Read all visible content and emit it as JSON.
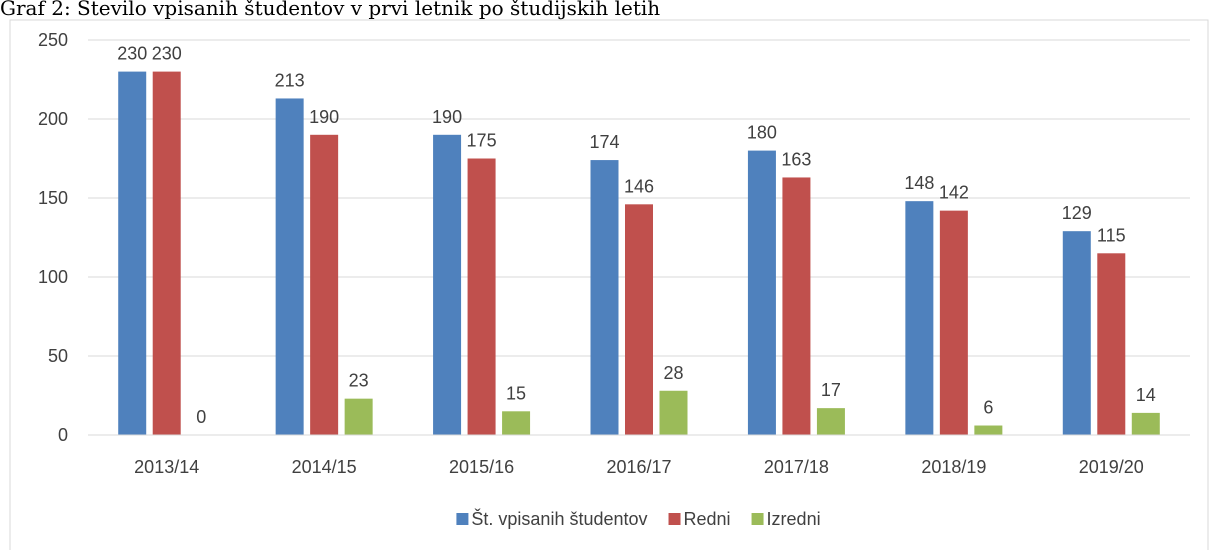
{
  "chart_data": {
    "type": "bar",
    "title": "Graf 2: Število vpisanih študentov v prvi letnik po študijskih letih",
    "categories": [
      "2013/14",
      "2014/15",
      "2015/16",
      "2016/17",
      "2017/18",
      "2018/19",
      "2019/20"
    ],
    "series": [
      {
        "name": "Št. vpisanih študentov",
        "color": "#4f81bd",
        "values": [
          230,
          213,
          190,
          174,
          180,
          148,
          129
        ]
      },
      {
        "name": "Redni",
        "color": "#c0504d",
        "values": [
          230,
          190,
          175,
          146,
          163,
          142,
          115
        ]
      },
      {
        "name": "Izredni",
        "color": "#9bbb59",
        "values": [
          0,
          23,
          15,
          28,
          17,
          6,
          14
        ]
      }
    ],
    "ylim": [
      0,
      250
    ],
    "yticks": [
      0,
      50,
      100,
      150,
      200,
      250
    ],
    "grid": true,
    "legend": "bottom"
  }
}
